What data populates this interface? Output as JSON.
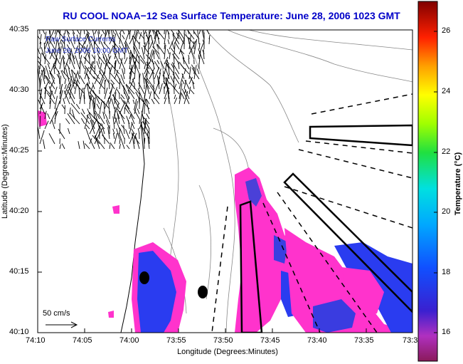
{
  "title": "RU COOL   NOAA−12  Sea Surface Temperature:  June 28, 2006 1023 GMT",
  "legend": {
    "line1": "Raw Surface Currents",
    "line2": "June 28, 2006 10:00 GMT"
  },
  "axes": {
    "y_label": "Latitude (Degrees:Minutes)",
    "x_label": "Longitude (Degrees:Minutes)",
    "y_ticks": [
      "40:35",
      "40:30",
      "40:25",
      "40:20",
      "40:15",
      "40:10"
    ],
    "x_ticks": [
      "74:10",
      "74:05",
      "74:00",
      "73:55",
      "73:50",
      "73:45",
      "73:40",
      "73:35",
      "73:3"
    ]
  },
  "scale": {
    "label": "50 cm/s"
  },
  "colorbar": {
    "label": "Temperature (°C)",
    "ticks": [
      "26",
      "24",
      "22",
      "20",
      "18",
      "16"
    ]
  },
  "colors": {
    "warm_water": "#ff33cc",
    "cool_water": "#2a3cf0",
    "title": "#0000c8"
  }
}
